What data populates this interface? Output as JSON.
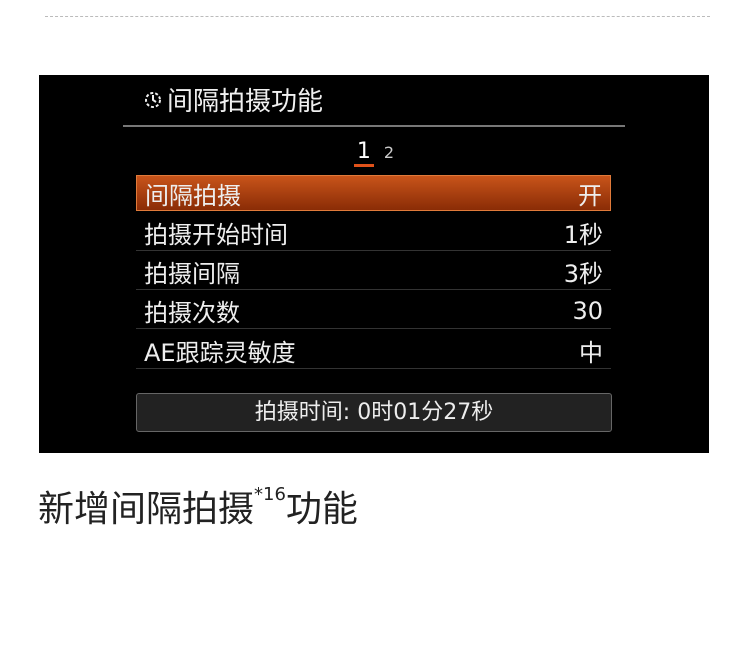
{
  "screen": {
    "title": "间隔拍摄功能",
    "title_icon": "interval-timer-icon",
    "pages": [
      "1",
      "2"
    ],
    "rows": [
      {
        "label": "间隔拍摄",
        "value": "开"
      },
      {
        "label": "拍摄开始时间",
        "value": "1秒"
      },
      {
        "label": "拍摄间隔",
        "value": "3秒"
      },
      {
        "label": "拍摄次数",
        "value": "30"
      },
      {
        "label": "AE跟踪灵敏度",
        "value": "中"
      }
    ],
    "summary": "拍摄时间: 0时01分27秒"
  },
  "caption": {
    "text": "新增间隔拍摄",
    "footnote": "*16",
    "suffix": "功能"
  }
}
